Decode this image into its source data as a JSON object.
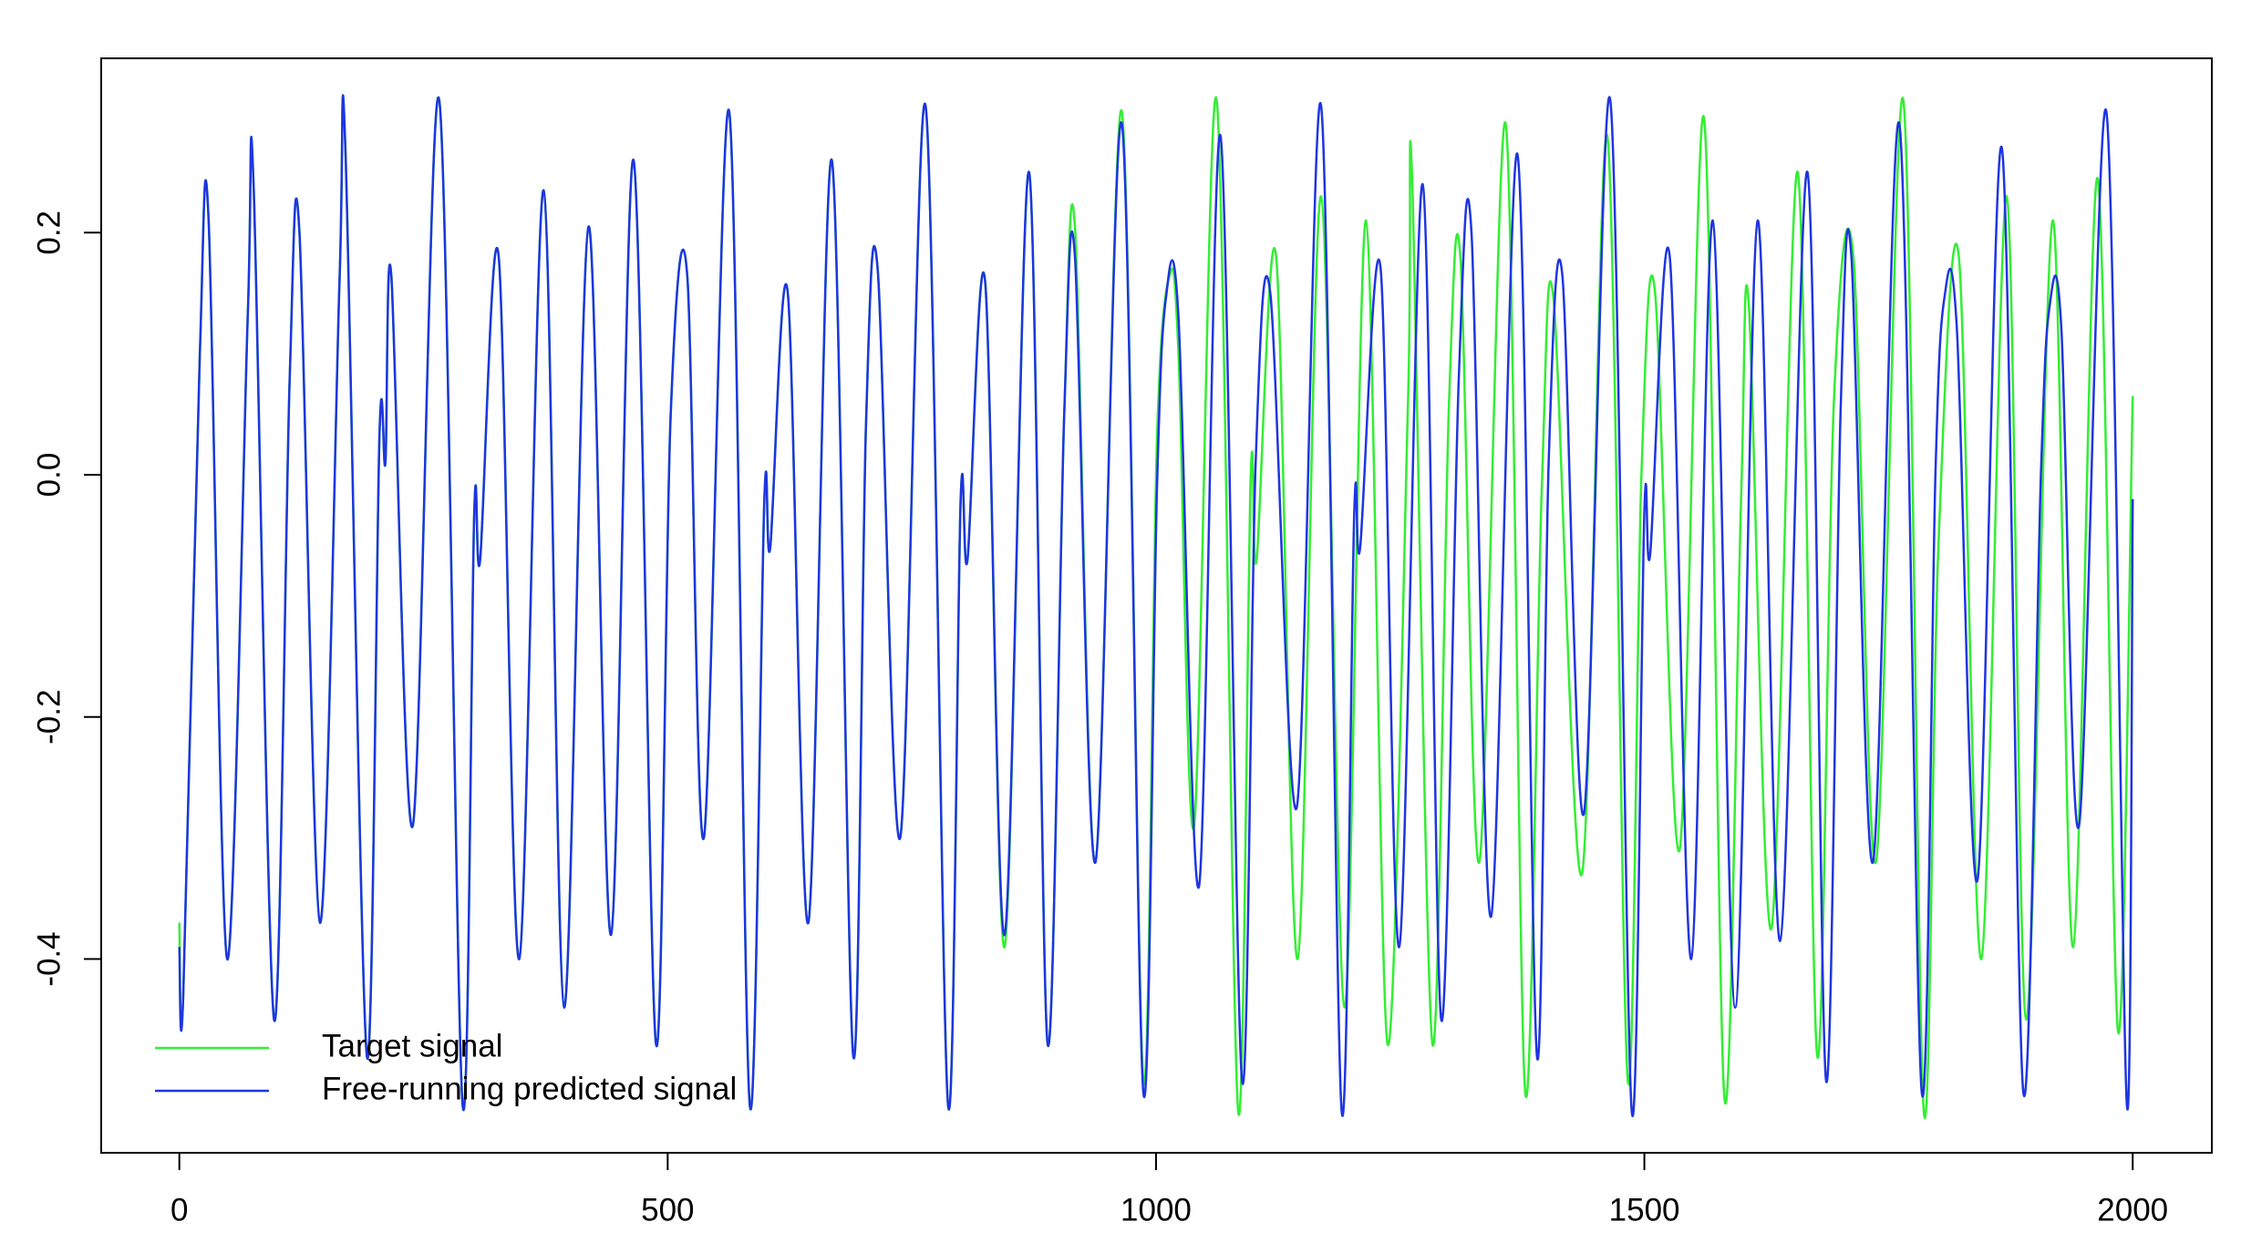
{
  "chart_data": {
    "type": "line",
    "xlim": [
      -80,
      2081
    ],
    "ylim": [
      -0.56,
      0.344
    ],
    "xticks": [
      0,
      500,
      1000,
      1500,
      2000
    ],
    "yticks": [
      -0.4,
      -0.2,
      {
        "value": 0,
        "label": "0.0"
      },
      0.2
    ],
    "grid": false,
    "legend": "bottomleft",
    "series": [
      {
        "name": "Target signal",
        "color": "#33ee33",
        "x": [
          0,
          4,
          21,
          30,
          49,
          70,
          76,
          97,
          113,
          123,
          144,
          164,
          170,
          192,
          205,
          211,
          217,
          239,
          266,
          290,
          302,
          308,
          327,
          348,
          373,
          394,
          419,
          442,
          465,
          488,
          503,
          520,
          537,
          563,
          584,
          599,
          605,
          623,
          644,
          668,
          690,
          703,
          715,
          738,
          764,
          787,
          800,
          807,
          825,
          845,
          870,
          889,
          906,
          917,
          938,
          965,
          987,
          1001,
          1014,
          1023,
          1039,
          1062,
          1084,
          1097,
          1103,
          1123,
          1145,
          1169,
          1193,
          1215,
          1237,
          1258,
          1262,
          1283,
          1300,
          1312,
          1331,
          1358,
          1378,
          1395,
          1407,
          1436,
          1462,
          1483,
          1497,
          1511,
          1536,
          1561,
          1582,
          1599,
          1607,
          1630,
          1657,
          1677,
          1694,
          1714,
          1737,
          1765,
          1786,
          1801,
          1822,
          1845,
          1871,
          1891,
          1918,
          1939,
          1964,
          1985,
          2000
        ],
        "values": [
          -0.37,
          -0.43,
          0.1,
          0.21,
          -0.4,
          0.13,
          0.24,
          -0.45,
          0.08,
          0.2,
          -0.37,
          0.16,
          0.27,
          -0.48,
          0.035,
          0.01,
          0.165,
          -0.29,
          0.31,
          -0.52,
          -0.03,
          -0.07,
          0.18,
          -0.4,
          0.235,
          -0.44,
          0.205,
          -0.38,
          0.26,
          -0.47,
          0.048,
          0.165,
          -0.3,
          0.3,
          -0.52,
          -0.02,
          -0.06,
          0.15,
          -0.37,
          0.26,
          -0.48,
          0.04,
          0.17,
          -0.3,
          0.305,
          -0.52,
          -0.02,
          -0.07,
          0.16,
          -0.39,
          0.25,
          -0.47,
          0.05,
          0.205,
          -0.32,
          0.3,
          -0.5,
          0.03,
          0.165,
          0.1,
          -0.29,
          0.31,
          -0.525,
          0.0,
          -0.07,
          0.18,
          -0.4,
          0.23,
          -0.44,
          0.21,
          -0.47,
          0.06,
          0.25,
          -0.47,
          0.06,
          0.175,
          -0.32,
          0.29,
          -0.51,
          -0.01,
          0.145,
          -0.33,
          0.28,
          -0.5,
          0.0,
          0.15,
          -0.31,
          0.295,
          -0.515,
          -0.02,
          0.14,
          -0.375,
          0.25,
          -0.48,
          0.06,
          0.18,
          -0.32,
          0.31,
          -0.525,
          -0.06,
          0.18,
          -0.4,
          0.23,
          -0.45,
          0.21,
          -0.39,
          0.245,
          -0.46,
          0.065
        ]
      },
      {
        "name": "Free-running predicted signal",
        "color": "#1f35e0",
        "x": [
          0,
          4,
          21,
          30,
          49,
          70,
          76,
          97,
          113,
          123,
          144,
          164,
          170,
          192,
          205,
          211,
          217,
          239,
          266,
          290,
          302,
          308,
          327,
          348,
          373,
          394,
          419,
          442,
          465,
          488,
          503,
          520,
          537,
          563,
          584,
          599,
          605,
          623,
          644,
          668,
          690,
          703,
          715,
          738,
          764,
          787,
          800,
          807,
          825,
          845,
          870,
          889,
          906,
          917,
          938,
          965,
          987,
          1001,
          1010,
          1023,
          1044,
          1066,
          1088,
          1102,
          1117,
          1144,
          1169,
          1190,
          1203,
          1209,
          1230,
          1249,
          1273,
          1292,
          1310,
          1323,
          1343,
          1370,
          1390,
          1402,
          1416,
          1438,
          1465,
          1487,
          1500,
          1506,
          1526,
          1548,
          1570,
          1593,
          1616,
          1639,
          1667,
          1686,
          1701,
          1712,
          1734,
          1761,
          1784,
          1798,
          1807,
          1820,
          1841,
          1866,
          1888,
          1906,
          1915,
          1927,
          1945,
          1973,
          1994,
          2000
        ],
        "values": [
          -0.39,
          -0.43,
          0.1,
          0.21,
          -0.4,
          0.13,
          0.24,
          -0.45,
          0.08,
          0.2,
          -0.37,
          0.16,
          0.27,
          -0.48,
          0.035,
          0.01,
          0.165,
          -0.29,
          0.31,
          -0.52,
          -0.03,
          -0.07,
          0.18,
          -0.4,
          0.235,
          -0.44,
          0.205,
          -0.38,
          0.26,
          -0.47,
          0.048,
          0.165,
          -0.3,
          0.3,
          -0.52,
          -0.02,
          -0.06,
          0.15,
          -0.37,
          0.26,
          -0.48,
          0.04,
          0.17,
          -0.3,
          0.305,
          -0.52,
          -0.02,
          -0.07,
          0.16,
          -0.38,
          0.25,
          -0.47,
          0.05,
          0.18,
          -0.32,
          0.29,
          -0.51,
          -0.01,
          0.145,
          0.13,
          -0.34,
          0.28,
          -0.5,
          0.01,
          0.15,
          -0.275,
          0.305,
          -0.525,
          -0.03,
          -0.06,
          0.17,
          -0.39,
          0.24,
          -0.45,
          0.08,
          0.2,
          -0.365,
          0.265,
          -0.48,
          0.01,
          0.165,
          -0.28,
          0.31,
          -0.525,
          -0.03,
          -0.065,
          0.18,
          -0.4,
          0.21,
          -0.44,
          0.21,
          -0.385,
          0.25,
          -0.5,
          0.055,
          0.18,
          -0.32,
          0.29,
          -0.51,
          0.0,
          0.145,
          0.12,
          -0.335,
          0.27,
          -0.51,
          0.0,
          0.14,
          0.12,
          -0.29,
          0.3,
          -0.52,
          -0.02
        ]
      }
    ]
  }
}
